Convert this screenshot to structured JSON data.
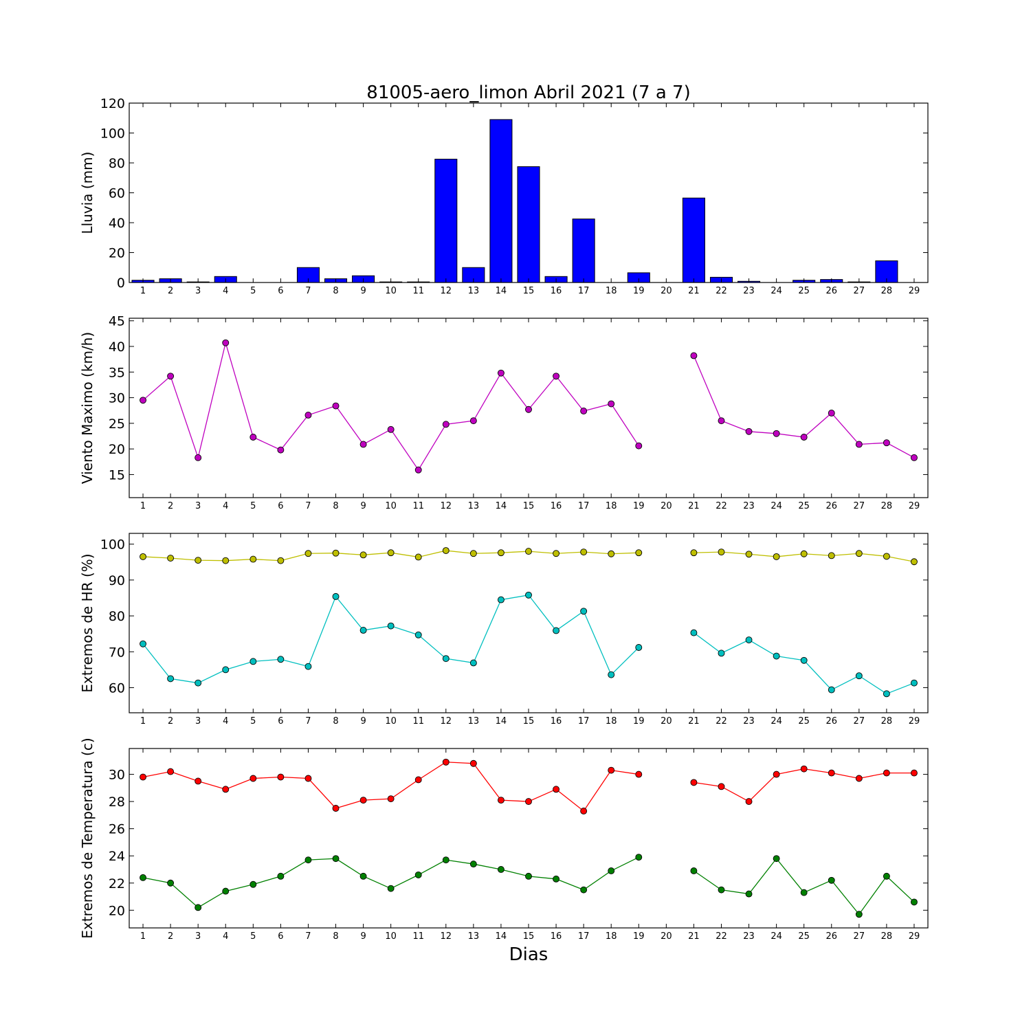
{
  "title": "81005-aero_limon Abril 2021  (7 a 7)",
  "xlabel": "Dias",
  "chart_data": [
    {
      "type": "bar",
      "ylabel": "Lluvia (mm)",
      "ylim": [
        0,
        120
      ],
      "yticks": [
        0,
        20,
        40,
        60,
        80,
        100,
        120
      ],
      "categories": [
        1,
        2,
        3,
        4,
        5,
        6,
        7,
        8,
        9,
        10,
        11,
        12,
        13,
        14,
        15,
        16,
        17,
        18,
        19,
        20,
        21,
        22,
        23,
        24,
        25,
        26,
        27,
        28,
        29
      ],
      "colors": {
        "bar": "#0000ff"
      },
      "series": [
        {
          "values": [
            1.5,
            2.5,
            0.4,
            4,
            0,
            0,
            10,
            2.5,
            4.5,
            0.4,
            0.4,
            82.5,
            10,
            109,
            77.5,
            4,
            42.5,
            0,
            6.5,
            null,
            56.5,
            3.5,
            0.8,
            0,
            1.5,
            2,
            0.4,
            14.5,
            0
          ]
        }
      ]
    },
    {
      "type": "line",
      "ylabel": "Viento Maximo (km/h)",
      "ylim": [
        10.5,
        45.5
      ],
      "yticks": [
        15,
        20,
        25,
        30,
        35,
        40,
        45
      ],
      "x": [
        1,
        2,
        3,
        4,
        5,
        6,
        7,
        8,
        9,
        10,
        11,
        12,
        13,
        14,
        15,
        16,
        17,
        18,
        19,
        20,
        21,
        22,
        23,
        24,
        25,
        26,
        27,
        28,
        29
      ],
      "series": [
        {
          "color": "#bf00bf",
          "values": [
            29.5,
            34.2,
            18.3,
            40.7,
            22.3,
            19.8,
            26.6,
            28.4,
            20.9,
            23.8,
            15.9,
            24.8,
            25.5,
            34.8,
            27.7,
            34.2,
            27.4,
            28.8,
            20.6,
            null,
            38.2,
            25.5,
            23.4,
            23.0,
            22.3,
            27.0,
            20.9,
            21.2,
            18.3
          ]
        }
      ]
    },
    {
      "type": "line",
      "ylabel": "Extremos de HR (%)",
      "ylim": [
        53,
        103
      ],
      "yticks": [
        60,
        70,
        80,
        90,
        100
      ],
      "x": [
        1,
        2,
        3,
        4,
        5,
        6,
        7,
        8,
        9,
        10,
        11,
        12,
        13,
        14,
        15,
        16,
        17,
        18,
        19,
        20,
        21,
        22,
        23,
        24,
        25,
        26,
        27,
        28,
        29
      ],
      "series": [
        {
          "color": "#bfbf00",
          "values": [
            96.5,
            96.1,
            95.5,
            95.4,
            95.8,
            95.4,
            97.4,
            97.5,
            97.0,
            97.6,
            96.4,
            98.2,
            97.4,
            97.6,
            98.0,
            97.4,
            97.8,
            97.3,
            97.6,
            null,
            97.6,
            97.8,
            97.2,
            96.5,
            97.3,
            96.8,
            97.4,
            96.6,
            95.1
          ]
        },
        {
          "color": "#00bfbf",
          "values": [
            72.2,
            62.5,
            61.3,
            65.0,
            67.3,
            67.9,
            65.9,
            85.4,
            76.0,
            77.2,
            74.7,
            68.1,
            66.9,
            84.5,
            85.8,
            75.9,
            81.3,
            63.6,
            71.2,
            null,
            75.3,
            69.6,
            73.3,
            68.8,
            67.6,
            59.4,
            63.3,
            58.3,
            61.3
          ]
        }
      ]
    },
    {
      "type": "line",
      "ylabel": "Extremos de Temperatura (c)",
      "ylim": [
        18.7,
        31.9
      ],
      "yticks": [
        20,
        22,
        24,
        26,
        28,
        30
      ],
      "x": [
        1,
        2,
        3,
        4,
        5,
        6,
        7,
        8,
        9,
        10,
        11,
        12,
        13,
        14,
        15,
        16,
        17,
        18,
        19,
        20,
        21,
        22,
        23,
        24,
        25,
        26,
        27,
        28,
        29
      ],
      "series": [
        {
          "color": "#ff0000",
          "values": [
            29.8,
            30.2,
            29.5,
            28.9,
            29.7,
            29.8,
            29.7,
            27.5,
            28.1,
            28.2,
            29.6,
            30.9,
            30.8,
            28.1,
            28.0,
            28.9,
            27.3,
            30.3,
            30.0,
            null,
            29.4,
            29.1,
            28.0,
            30.0,
            30.4,
            30.1,
            29.7,
            30.1,
            30.1
          ]
        },
        {
          "color": "#008000",
          "values": [
            22.4,
            22.0,
            20.2,
            21.4,
            21.9,
            22.5,
            23.7,
            23.8,
            22.5,
            21.6,
            22.6,
            23.7,
            23.4,
            23.0,
            22.5,
            22.3,
            21.5,
            22.9,
            23.9,
            null,
            22.9,
            21.5,
            21.2,
            23.8,
            21.3,
            22.2,
            19.7,
            22.5,
            20.6
          ]
        }
      ]
    }
  ]
}
